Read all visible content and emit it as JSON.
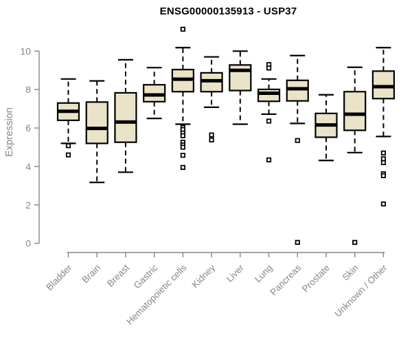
{
  "chart_data": {
    "type": "boxplot",
    "title": "ENSG00000135913 - USP37",
    "ylabel": "Expression",
    "xlabel": "",
    "ylim": [
      0,
      10
    ],
    "yticks": [
      0,
      2,
      4,
      6,
      8,
      10
    ],
    "grid": false,
    "legend": false,
    "colors": {
      "box_fill": "#EAE3C8",
      "box_stroke": "#000000",
      "median": "#000000",
      "whisker": "#000000",
      "outlier_stroke": "#000000",
      "outlier_fill": "#ffffff",
      "axis": "#858585",
      "tick_label": "#878787",
      "title": "#000000"
    },
    "categories": [
      "Bladder",
      "Brain",
      "Breast",
      "Gastric",
      "Hematopoietic cells",
      "Kidney",
      "Liver",
      "Lung",
      "Pancreas",
      "Prostate",
      "Skin",
      "Unknown / Other"
    ],
    "series": [
      {
        "name": "Bladder",
        "whisker_low": 5.2,
        "q1": 6.4,
        "median": 6.87,
        "q3": 7.3,
        "whisker_high": 8.55,
        "outliers": [
          5.08,
          4.6
        ]
      },
      {
        "name": "Brain",
        "whisker_low": 3.17,
        "q1": 5.2,
        "median": 5.98,
        "q3": 7.35,
        "whisker_high": 8.45,
        "outliers": []
      },
      {
        "name": "Breast",
        "whisker_low": 3.7,
        "q1": 5.26,
        "median": 6.31,
        "q3": 7.83,
        "whisker_high": 9.55,
        "outliers": []
      },
      {
        "name": "Gastric",
        "whisker_low": 6.5,
        "q1": 7.37,
        "median": 7.72,
        "q3": 8.25,
        "whisker_high": 9.14,
        "outliers": []
      },
      {
        "name": "Hematopoietic cells",
        "whisker_low": 6.2,
        "q1": 7.89,
        "median": 8.54,
        "q3": 9.04,
        "whisker_high": 10.18,
        "outliers": [
          11.14,
          6.03,
          5.92,
          5.74,
          5.6,
          5.26,
          5.12,
          5.0,
          4.58,
          3.95
        ]
      },
      {
        "name": "Kidney",
        "whisker_low": 7.08,
        "q1": 7.89,
        "median": 8.46,
        "q3": 8.87,
        "whisker_high": 9.7,
        "outliers": [
          5.64,
          5.38
        ]
      },
      {
        "name": "Liver",
        "whisker_low": 6.2,
        "q1": 7.95,
        "median": 9.0,
        "q3": 9.28,
        "whisker_high": 10.0,
        "outliers": []
      },
      {
        "name": "Lung",
        "whisker_low": 6.72,
        "q1": 7.39,
        "median": 7.81,
        "q3": 8.01,
        "whisker_high": 8.55,
        "outliers": [
          9.3,
          9.12,
          6.36,
          4.34
        ]
      },
      {
        "name": "Pancreas",
        "whisker_low": 6.24,
        "q1": 7.41,
        "median": 8.04,
        "q3": 8.48,
        "whisker_high": 9.77,
        "outliers": [
          5.35,
          0.05
        ]
      },
      {
        "name": "Prostate",
        "whisker_low": 4.31,
        "q1": 5.52,
        "median": 6.16,
        "q3": 6.76,
        "whisker_high": 7.73,
        "outliers": []
      },
      {
        "name": "Skin",
        "whisker_low": 4.72,
        "q1": 5.88,
        "median": 6.72,
        "q3": 7.89,
        "whisker_high": 9.16,
        "outliers": [
          0.05
        ]
      },
      {
        "name": "Unknown / Other",
        "whisker_low": 5.56,
        "q1": 7.53,
        "median": 8.15,
        "q3": 8.96,
        "whisker_high": 10.18,
        "outliers": [
          4.7,
          4.4,
          4.2,
          3.62,
          3.52,
          2.05
        ]
      }
    ]
  }
}
